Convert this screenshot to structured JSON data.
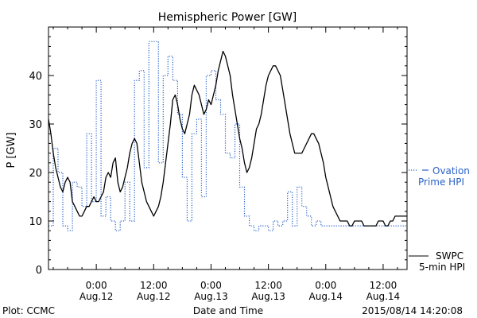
{
  "chart_data": {
    "type": "line",
    "title": "Hemispheric Power [GW]",
    "xlabel": "Date and Time",
    "ylabel": "P [GW]",
    "ylim": [
      0,
      50
    ],
    "xlim": [
      -10,
      65
    ],
    "x_unit": "hours since 2015-08-12 00:00 UT",
    "y_ticks": [
      0,
      10,
      20,
      30,
      40
    ],
    "x_ticks": [
      {
        "x": 0,
        "label1": "0:00",
        "label2": "Aug.12"
      },
      {
        "x": 12,
        "label1": "12:00",
        "label2": "Aug.12"
      },
      {
        "x": 24,
        "label1": "0:00",
        "label2": "Aug.13"
      },
      {
        "x": 36,
        "label1": "12:00",
        "label2": "Aug.13"
      },
      {
        "x": 48,
        "label1": "0:00",
        "label2": "Aug.14"
      },
      {
        "x": 60,
        "label1": "12:00",
        "label2": "Aug.14"
      }
    ],
    "legend_placement": "right",
    "series": [
      {
        "name": "Ovation Prime HPI",
        "legend_lines": [
          "Ovation",
          "Prime HPI"
        ],
        "color": "#2a62c8",
        "style": "dotted-steps",
        "x": [
          -10,
          -9,
          -8,
          -7,
          -6,
          -5,
          -4,
          -3,
          -2,
          -1,
          0,
          1,
          2,
          3,
          4,
          5,
          6,
          7,
          8,
          9,
          10,
          11,
          12,
          13,
          14,
          15,
          16,
          17,
          18,
          19,
          20,
          21,
          22,
          23,
          24,
          25,
          26,
          27,
          28,
          29,
          30,
          31,
          32,
          33,
          34,
          35,
          36,
          37,
          38,
          39,
          40,
          41,
          42,
          43,
          44,
          45,
          46,
          47,
          48,
          49,
          50,
          51,
          52,
          53,
          54,
          55,
          56,
          57,
          58,
          59,
          60,
          61,
          62,
          63,
          64,
          65
        ],
        "y": [
          9,
          25,
          20,
          9,
          8,
          18,
          17,
          13,
          28,
          14,
          39,
          11,
          15,
          10,
          8,
          10,
          18,
          10,
          39,
          41,
          21,
          47,
          47,
          22,
          40,
          44,
          39,
          32,
          19,
          10,
          28,
          31,
          15,
          40,
          41,
          35,
          32,
          24,
          23,
          30,
          17,
          11,
          9,
          8,
          9,
          9,
          8,
          10,
          9,
          10,
          16,
          9,
          17,
          13,
          11,
          9,
          10,
          9,
          9,
          9,
          9,
          9,
          9,
          9,
          9,
          9,
          9,
          9,
          9,
          9,
          9,
          9,
          9,
          9,
          9,
          9
        ]
      },
      {
        "name": "SWPC 5-min HPI",
        "legend_lines": [
          "SWPC",
          "5-min HPI"
        ],
        "color": "#000000",
        "style": "solid",
        "x": [
          -10,
          -9.5,
          -9,
          -8.5,
          -8,
          -7.5,
          -7,
          -6.5,
          -6,
          -5.5,
          -5,
          -4.5,
          -4,
          -3.5,
          -3,
          -2.5,
          -2,
          -1.5,
          -1,
          -0.5,
          0,
          0.5,
          1,
          1.5,
          2,
          2.5,
          3,
          3.5,
          4,
          4.5,
          5,
          5.5,
          6,
          6.5,
          7,
          7.5,
          8,
          8.5,
          9,
          9.5,
          10,
          10.5,
          11,
          11.5,
          12,
          12.5,
          13,
          13.5,
          14,
          14.5,
          15,
          15.5,
          16,
          16.5,
          17,
          17.5,
          18,
          18.5,
          19,
          19.5,
          20,
          20.5,
          21,
          21.5,
          22,
          22.5,
          23,
          23.5,
          24,
          24.5,
          25,
          25.5,
          26,
          26.5,
          27,
          27.5,
          28,
          28.5,
          29,
          29.5,
          30,
          30.5,
          31,
          31.5,
          32,
          32.5,
          33,
          33.5,
          34,
          34.5,
          35,
          35.5,
          36,
          36.5,
          37,
          37.5,
          38,
          38.5,
          39,
          39.5,
          40,
          40.5,
          41,
          41.5,
          42,
          42.5,
          43,
          43.5,
          44,
          44.5,
          45,
          45.5,
          46,
          46.5,
          47,
          47.5,
          48,
          48.5,
          49,
          49.5,
          50,
          50.5,
          51,
          51.5,
          52,
          52.5,
          53,
          53.5,
          54,
          54.5,
          55,
          55.5,
          56,
          56.5,
          57,
          57.5,
          58,
          58.5,
          59,
          59.5,
          60,
          60.5,
          61,
          61.5,
          62,
          62.5,
          63,
          63.5,
          64,
          64.5,
          65
        ],
        "y": [
          31,
          28,
          24,
          21,
          19,
          17,
          16,
          18,
          19,
          18,
          14,
          13,
          12,
          11,
          11,
          12,
          13,
          13,
          14,
          15,
          14,
          14,
          15,
          16,
          19,
          20,
          19,
          22,
          23,
          18,
          16,
          17,
          19,
          21,
          24,
          26,
          27,
          26,
          22,
          18,
          16,
          14,
          13,
          12,
          11,
          12,
          13,
          15,
          18,
          22,
          26,
          30,
          35,
          36,
          34,
          31,
          29,
          28,
          30,
          32,
          36,
          38,
          37,
          36,
          34,
          32,
          33,
          35,
          34,
          36,
          38,
          41,
          43,
          45,
          44,
          42,
          40,
          36,
          33,
          30,
          27,
          25,
          22,
          20,
          21,
          23,
          26,
          29,
          30,
          32,
          35,
          38,
          40,
          41,
          42,
          42,
          41,
          40,
          37,
          34,
          31,
          28,
          26,
          24,
          24,
          24,
          24,
          25,
          26,
          27,
          28,
          28,
          27,
          26,
          24,
          22,
          19,
          17,
          15,
          13,
          12,
          11,
          10,
          10,
          10,
          10,
          9,
          9,
          10,
          10,
          10,
          10,
          9,
          9,
          9,
          9,
          9,
          9,
          10,
          10,
          10,
          9,
          9,
          10,
          10,
          11,
          11,
          11,
          11,
          11,
          11
        ]
      }
    ]
  },
  "footer": {
    "plot_credit": "Plot: CCMC",
    "timestamp": "2015/08/14 14:20:08"
  }
}
